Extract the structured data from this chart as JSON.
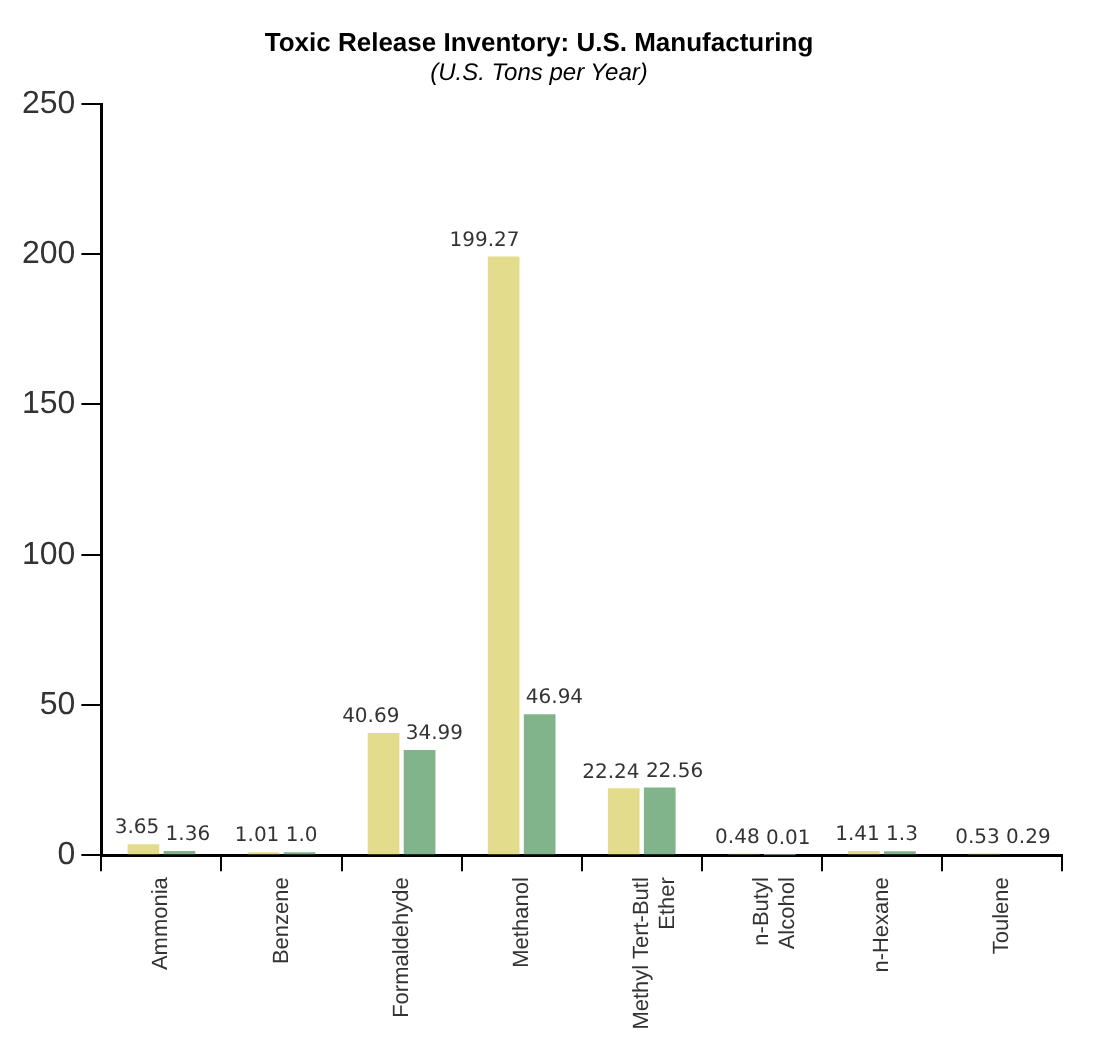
{
  "chart_data": {
    "type": "bar",
    "title": "Toxic Release Inventory: U.S. Manufacturing",
    "subtitle": "(U.S. Tons per Year)",
    "categories": [
      "Ammonia",
      "Benzene",
      "Formaldehyde",
      "Methanol",
      "Methyl Tert-Butl Ether",
      "n-Butyl Alcohol",
      "n-Hexane",
      "Toulene"
    ],
    "series": [
      {
        "color": "#e3dc8c",
        "values": [
          3.65,
          1.01,
          40.69,
          199.27,
          22.24,
          0.48,
          1.41,
          0.53
        ],
        "value_labels": [
          "3.65",
          "1.01",
          "40.69",
          "199.27",
          "22.24",
          "0.48",
          "1.41",
          "0.53"
        ]
      },
      {
        "color": "#82b48c",
        "values": [
          1.36,
          1.0,
          34.99,
          46.94,
          22.56,
          0.01,
          1.3,
          0.29
        ],
        "value_labels": [
          "1.36",
          "1.0",
          "34.99",
          "46.94",
          "22.56",
          "0.01",
          "1.3",
          "0.29"
        ]
      }
    ],
    "ylim": [
      0,
      250
    ],
    "yticks": [
      0,
      50,
      100,
      150,
      200,
      250
    ],
    "grid": false,
    "legend": false
  }
}
